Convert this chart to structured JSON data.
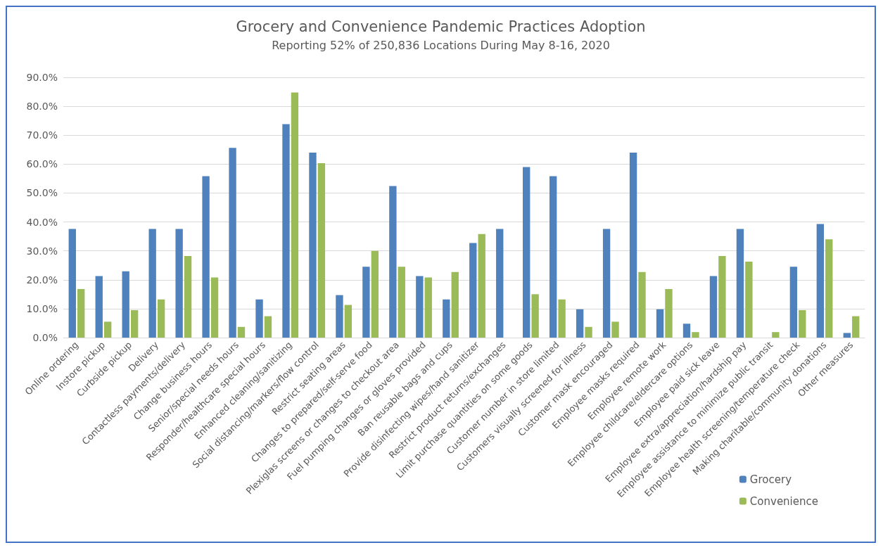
{
  "chart_data": {
    "type": "bar",
    "title": "Grocery and Convenience Pandemic Practices Adoption",
    "subtitle": "Reporting 52% of 250,836 Locations During May 8-16, 2020",
    "categories": [
      "Online ordering",
      "Instore pickup",
      "Curbside pickup",
      "Delivery",
      "Contactless payments/delivery",
      "Change business hours",
      "Senior/special needs hours",
      "Responder/healthcare special hours",
      "Enhanced cleaning/sanitizing",
      "Social distancing/markers/flow control",
      "Restrict seating areas",
      "Changes to prepared/self-serve food",
      "Plexiglas screens or changes to checkout area",
      "Fuel pumping changes or gloves provided",
      "Ban reusable bags and cups",
      "Provide disinfecting wipes/hand sanitizer",
      "Restrict product returns/exchanges",
      "Limit purchase quantities on some goods",
      "Customer number in store limited",
      "Customers visually screened for illness",
      "Customer mask encouraged",
      "Employee masks required",
      "Employee remote work",
      "Employee childcare/eldercare options",
      "Employee paid sick leave",
      "Employee extra/appreciation/hardship pay",
      "Employee assistance to minimize public transit",
      "Employee health screening/temperature check",
      "Making charitable/community donations",
      "Other measures"
    ],
    "series": [
      {
        "name": "Grocery",
        "color": "#4f81bd",
        "values": [
          37.6,
          21.3,
          22.9,
          37.6,
          37.6,
          55.8,
          65.6,
          13.2,
          73.8,
          64.0,
          14.7,
          24.5,
          52.4,
          21.3,
          13.2,
          32.7,
          37.6,
          59.0,
          55.8,
          9.8,
          37.6,
          64.0,
          9.8,
          4.8,
          21.3,
          37.6,
          0,
          24.5,
          39.3,
          1.6
        ]
      },
      {
        "name": "Convenience",
        "color": "#9bbb59",
        "values": [
          16.8,
          5.5,
          9.5,
          13.2,
          28.2,
          20.8,
          3.7,
          7.4,
          84.8,
          60.3,
          11.3,
          30.0,
          24.5,
          20.8,
          22.7,
          35.8,
          0,
          15.0,
          13.2,
          3.7,
          5.5,
          22.7,
          16.8,
          1.9,
          28.2,
          26.3,
          1.9,
          9.5,
          34.0,
          7.4
        ]
      }
    ],
    "ylim": [
      0,
      90
    ],
    "yticks": [
      {
        "value": 0,
        "label": "0.0%"
      },
      {
        "value": 10,
        "label": "10.0%"
      },
      {
        "value": 20,
        "label": "20.0%"
      },
      {
        "value": 30,
        "label": "30.0%"
      },
      {
        "value": 40,
        "label": "40.0%"
      },
      {
        "value": 50,
        "label": "50.0%"
      },
      {
        "value": 60,
        "label": "60.0%"
      },
      {
        "value": 70,
        "label": "70.0%"
      },
      {
        "value": 80,
        "label": "80.0%"
      },
      {
        "value": 90,
        "label": "90.0%"
      }
    ],
    "grid": "y",
    "legend": "bottom right"
  }
}
